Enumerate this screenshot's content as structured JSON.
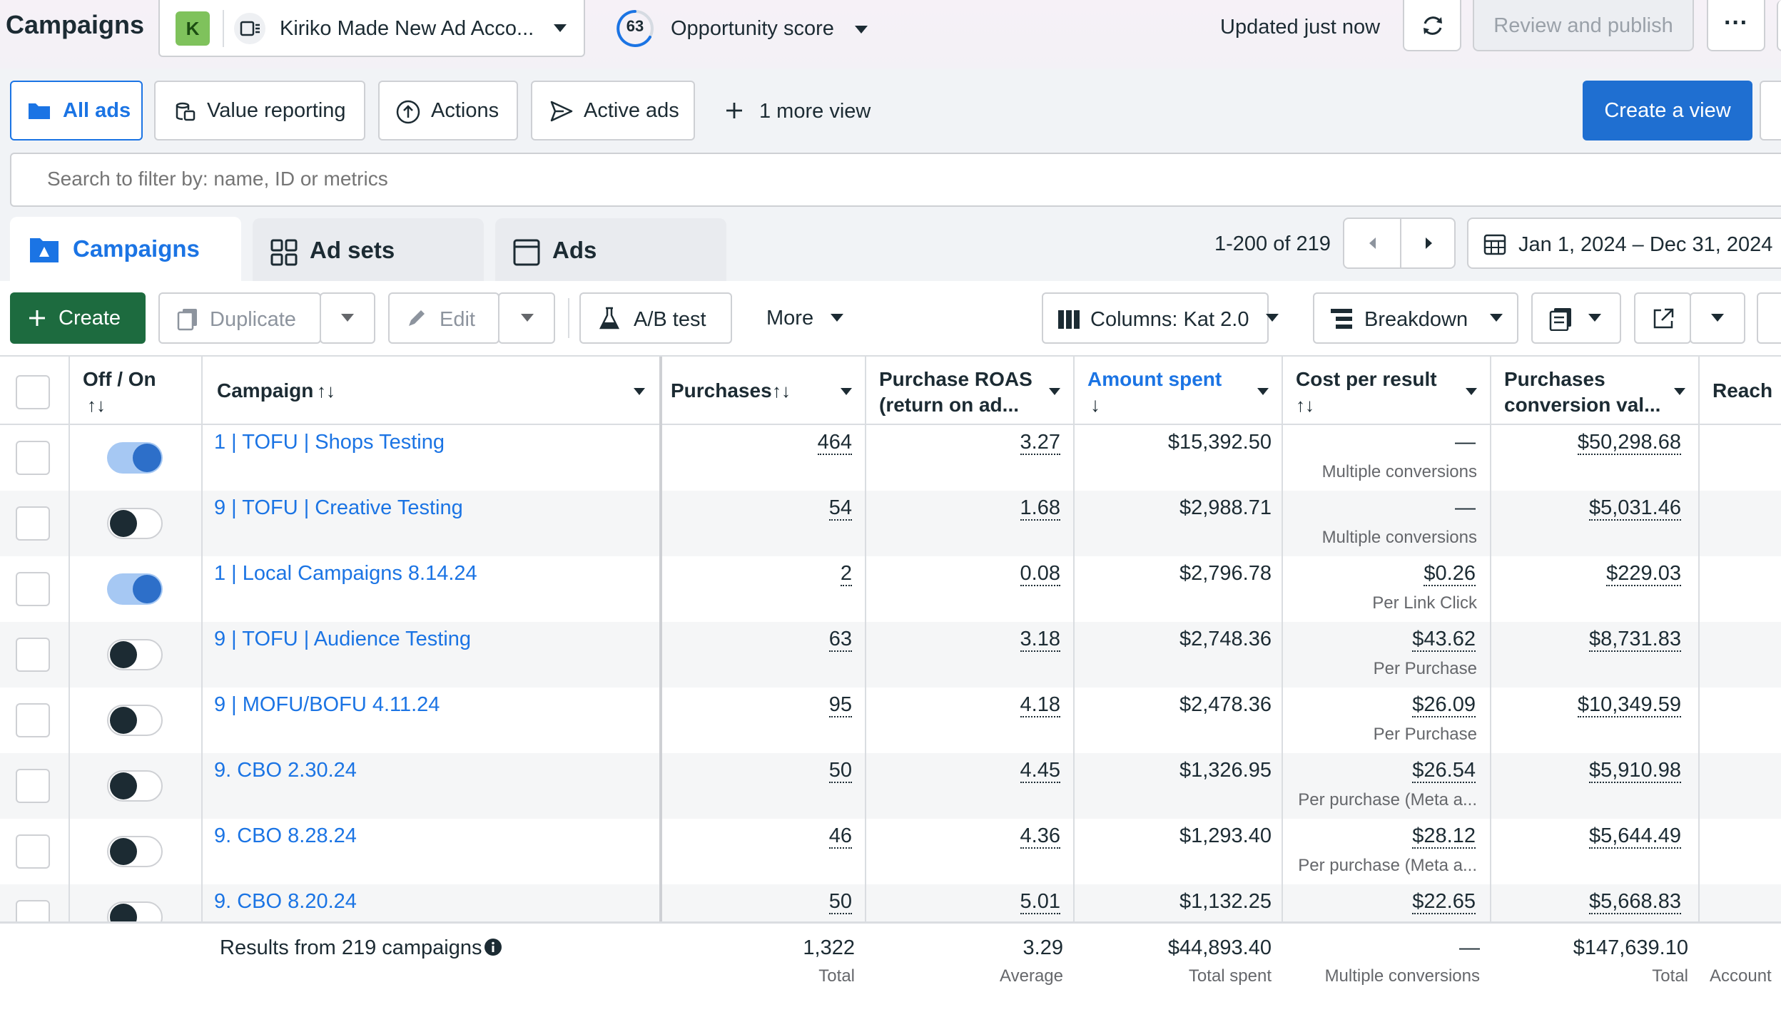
{
  "header": {
    "title": "Campaigns",
    "account_badge": "K",
    "account_name": "Kiriko Made New Ad Acco...",
    "opportunity_score": "63",
    "opportunity_label": "Opportunity score",
    "updated": "Updated just now",
    "review_publish": "Review and publish",
    "more": "···"
  },
  "views": {
    "tabs": [
      "All ads",
      "Value reporting",
      "Actions",
      "Active ads"
    ],
    "more_views": "1 more view",
    "create_view": "Create a view"
  },
  "search": {
    "placeholder": "Search to filter by: name, ID or metrics"
  },
  "levels": {
    "campaigns": "Campaigns",
    "ad_sets": "Ad sets",
    "ads": "Ads"
  },
  "pager": {
    "range": "1-200 of 219"
  },
  "date_range": "Jan 1, 2024 – Dec 31, 2024",
  "toolbar": {
    "create": "Create",
    "duplicate": "Duplicate",
    "edit": "Edit",
    "ab_test": "A/B test",
    "more": "More",
    "columns": "Columns: Kat 2.0",
    "breakdown": "Breakdown"
  },
  "columns": {
    "off_on": "Off / On",
    "sort_glyph": "↑↓",
    "campaign": "Campaign",
    "purchases": "Purchases",
    "roas_1": "Purchase ROAS",
    "roas_2": "(return on ad...",
    "amount_spent": "Amount spent",
    "amount_sort": "↓",
    "cpr": "Cost per result",
    "pcv_1": "Purchases",
    "pcv_2": "conversion val...",
    "reach": "Reach"
  },
  "rows": [
    {
      "on": true,
      "name": "1 | TOFU | Shops Testing",
      "purchases": "464",
      "roas": "3.27",
      "spent": "$15,392.50",
      "cpr": "—",
      "cpr_sub": "Multiple conversions",
      "pcv": "$50,298.68"
    },
    {
      "on": false,
      "name": "9 | TOFU | Creative Testing",
      "purchases": "54",
      "roas": "1.68",
      "spent": "$2,988.71",
      "cpr": "—",
      "cpr_sub": "Multiple conversions",
      "pcv": "$5,031.46"
    },
    {
      "on": true,
      "name": "1 | Local Campaigns 8.14.24",
      "purchases": "2",
      "roas": "0.08",
      "spent": "$2,796.78",
      "cpr": "$0.26",
      "cpr_sub": "Per Link Click",
      "pcv": "$229.03"
    },
    {
      "on": false,
      "name": "9 | TOFU | Audience Testing",
      "purchases": "63",
      "roas": "3.18",
      "spent": "$2,748.36",
      "cpr": "$43.62",
      "cpr_sub": "Per Purchase",
      "pcv": "$8,731.83"
    },
    {
      "on": false,
      "name": "9 | MOFU/BOFU 4.11.24",
      "purchases": "95",
      "roas": "4.18",
      "spent": "$2,478.36",
      "cpr": "$26.09",
      "cpr_sub": "Per Purchase",
      "pcv": "$10,349.59"
    },
    {
      "on": false,
      "name": "9. CBO 2.30.24",
      "purchases": "50",
      "roas": "4.45",
      "spent": "$1,326.95",
      "cpr": "$26.54",
      "cpr_sub": "Per purchase (Meta a...",
      "pcv": "$5,910.98"
    },
    {
      "on": false,
      "name": "9. CBO 8.28.24",
      "purchases": "46",
      "roas": "4.36",
      "spent": "$1,293.40",
      "cpr": "$28.12",
      "cpr_sub": "Per purchase (Meta a...",
      "pcv": "$5,644.49"
    },
    {
      "on": false,
      "name": "9. CBO 8.20.24",
      "purchases": "50",
      "roas": "5.01",
      "spent": "$1,132.25",
      "cpr": "$22.65",
      "cpr_sub": "",
      "pcv": "$5,668.83"
    }
  ],
  "footer": {
    "results": "Results from 219 campaigns",
    "purchases": "1,322",
    "purchases_sub": "Total",
    "roas": "3.29",
    "roas_sub": "Average",
    "spent": "$44,893.40",
    "spent_sub": "Total spent",
    "cpr": "—",
    "cpr_sub": "Multiple conversions",
    "pcv": "$147,639.10",
    "pcv_sub": "Total",
    "reach_sub": "Account"
  }
}
